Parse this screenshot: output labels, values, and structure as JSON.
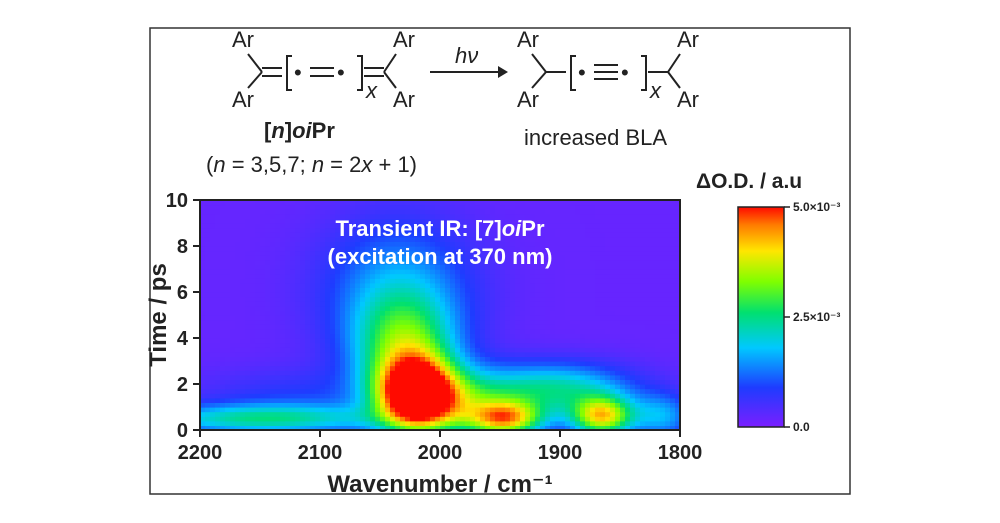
{
  "scheme": {
    "ar": "Ar",
    "dot": "•",
    "x": "x",
    "hv": "hν",
    "reactant_n": "n",
    "reactant_oi": "oi",
    "reactant_pr": "Pr",
    "reactant_n_open": "(",
    "reactant_n_var1": "n",
    "reactant_n_mid": " = 3,5,7; ",
    "reactant_n_var2": "n",
    "reactant_n_end": " = 2",
    "reactant_n_var3": "x",
    "reactant_n_tail": " + 1)",
    "product_label": "increased BLA"
  },
  "chart_data": {
    "type": "heatmap",
    "title_lines": [
      "Transient IR: [7]oiPr",
      "(excitation at 370 nm)"
    ],
    "title_line1_prefix": "Transient IR: [7]",
    "title_line1_italic": "oi",
    "title_line1_suffix": "Pr",
    "title_line2": "(excitation at 370 nm)",
    "xlabel": "Wavenumber / cm⁻¹",
    "ylabel": "Time / ps",
    "colorbar_label": "ΔO.D. / a.u",
    "xlim": [
      2200,
      1800
    ],
    "ylim": [
      0,
      10
    ],
    "x_ticks": [
      2200,
      2100,
      2000,
      1900,
      1800
    ],
    "y_ticks": [
      0,
      2,
      4,
      6,
      8,
      10
    ],
    "colorbar_range": [
      0.0,
      0.005
    ],
    "colorbar_ticks": [
      {
        "value": 0.0,
        "label": "0.0"
      },
      {
        "value": 0.0025,
        "label": "2.5×10⁻³"
      },
      {
        "value": 0.005,
        "label": "5.0×10⁻³"
      }
    ],
    "colormap": "rainbow (violet → blue → cyan → green → yellow → red)",
    "features": [
      {
        "x": 2020,
        "y": 1.6,
        "value": 0.005
      },
      {
        "x": 1940,
        "y": 0.5,
        "value": 0.0045
      },
      {
        "x": 1865,
        "y": 0.6,
        "value": 0.0045
      },
      {
        "x": 2030,
        "y": 4.0,
        "value": 0.0024
      },
      {
        "x": 2150,
        "y": 0.5,
        "value": 0.002
      }
    ]
  }
}
